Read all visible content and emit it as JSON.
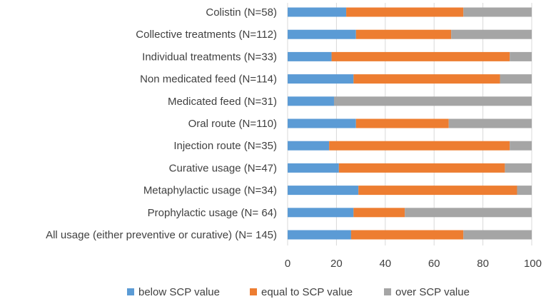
{
  "chart_data": {
    "type": "bar",
    "orientation": "horizontal",
    "stacked": true,
    "title": "",
    "xlabel": "",
    "ylabel": "",
    "xlim": [
      0,
      100
    ],
    "xticks": [
      0,
      20,
      40,
      60,
      80,
      100
    ],
    "grid": true,
    "legend_position": "bottom",
    "categories": [
      "Colistin (N=58)",
      "Collective treatments (N=112)",
      "Individual treatments (N=33)",
      "Non medicated feed (N=114)",
      "Medicated feed (N=31)",
      "Oral route (N=110)",
      "Injection route (N=35)",
      "Curative usage (N=47)",
      "Metaphylactic usage (N=34)",
      "Prophylactic usage (N= 64)",
      "All usage (either preventive or curative) (N= 145)"
    ],
    "series": [
      {
        "name": "below SCP value",
        "color": "#5b9bd5",
        "values": [
          24,
          28,
          18,
          27,
          19,
          28,
          17,
          21,
          29,
          27,
          26
        ]
      },
      {
        "name": "equal to SCP value",
        "color": "#ed7d31",
        "values": [
          48,
          39,
          73,
          60,
          0,
          38,
          74,
          68,
          65,
          21,
          46
        ]
      },
      {
        "name": "over SCP value",
        "color": "#a5a5a5",
        "values": [
          28,
          33,
          9,
          13,
          81,
          34,
          9,
          11,
          6,
          52,
          28
        ]
      }
    ]
  }
}
